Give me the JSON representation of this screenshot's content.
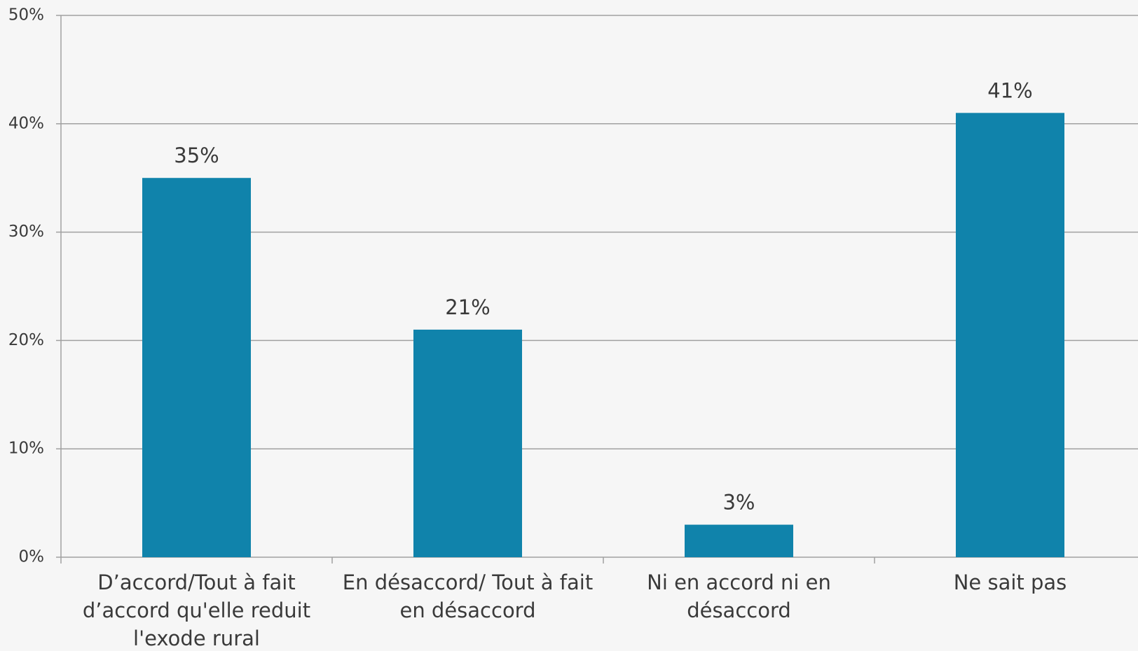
{
  "chart_data": {
    "type": "bar",
    "categories": [
      "D’accord/Tout à fait d’accord qu'elle reduit l'exode rural",
      "En désaccord/ Tout à fait en désaccord",
      "Ni en accord ni en désaccord",
      "Ne sait pas"
    ],
    "values": [
      35,
      21,
      3,
      41
    ],
    "value_labels": [
      "35%",
      "21%",
      "3%",
      "41%"
    ],
    "color": "#1083ab",
    "ylim": [
      0,
      50
    ],
    "yticks": [
      {
        "value": 0,
        "label": "0%"
      },
      {
        "value": 10,
        "label": "10%"
      },
      {
        "value": 20,
        "label": "20%"
      },
      {
        "value": 30,
        "label": "30%"
      },
      {
        "value": 40,
        "label": "40%"
      },
      {
        "value": 50,
        "label": "50%"
      }
    ],
    "grid": true
  }
}
